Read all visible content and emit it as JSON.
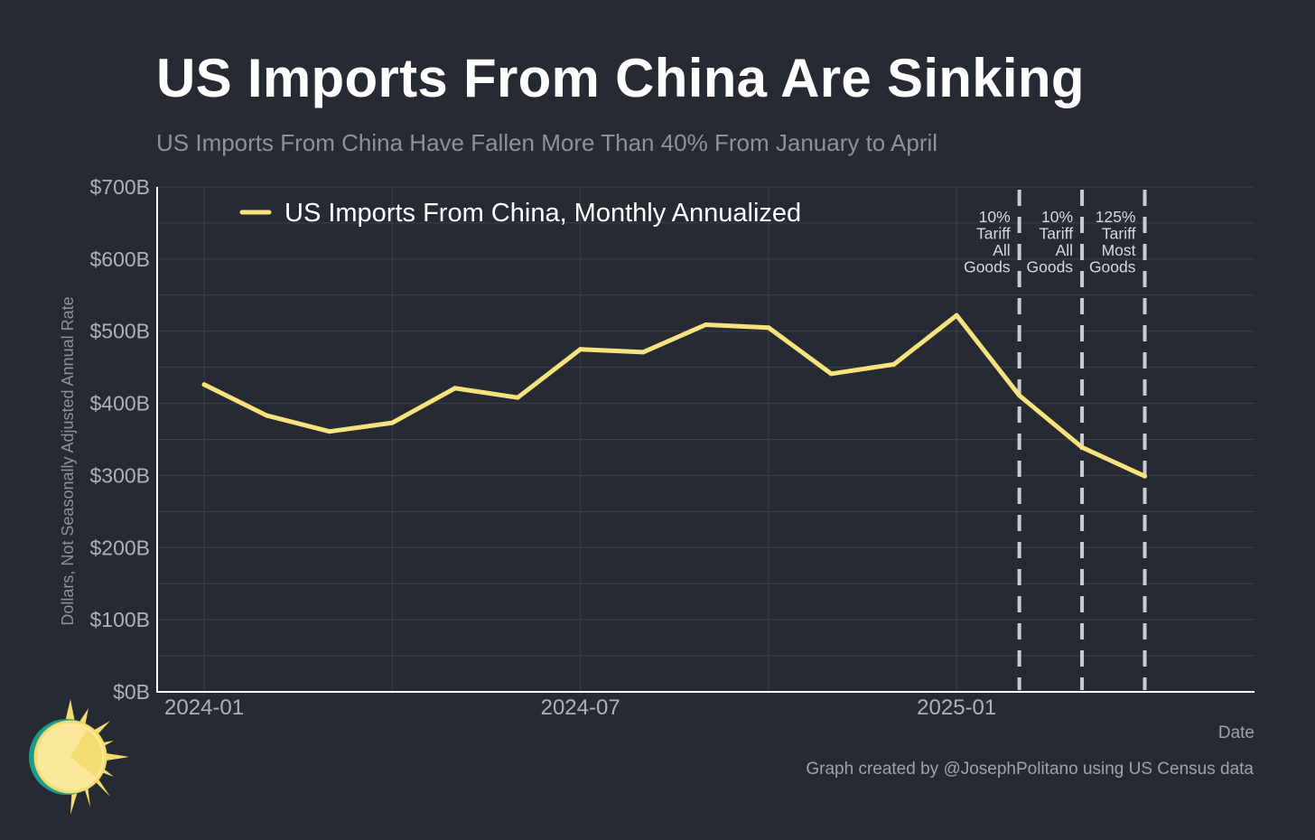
{
  "title": "US Imports From China Are Sinking",
  "subtitle": "US Imports From China Have Fallen More Than 40% From January to April",
  "caption": "Graph created by @JosephPolitano using US Census data",
  "colors": {
    "background": "#252a33",
    "series": "#f7e27e",
    "grid": "#3b404a",
    "axis": "#ffffff",
    "tick_text": "#aeb2b8",
    "vline": "#c9ccd1"
  },
  "chart_data": {
    "type": "line",
    "xlabel": "Date",
    "ylabel": "Dollars, Not Seasonally Adjusted Annual Rate",
    "ylim": [
      0,
      700
    ],
    "yticks": [
      0,
      100,
      200,
      300,
      400,
      500,
      600,
      700
    ],
    "ytick_labels": [
      "$0B",
      "$100B",
      "$200B",
      "$300B",
      "$400B",
      "$500B",
      "$600B",
      "$700B"
    ],
    "xlim": [
      -0.75,
      16.75
    ],
    "xticks": [
      0,
      6,
      12
    ],
    "xtick_labels": [
      "2024-01",
      "2024-07",
      "2025-01"
    ],
    "x_minor_gridlines": [
      3,
      9
    ],
    "legend_position": "top-left",
    "grid": true,
    "series": [
      {
        "name": "US Imports From China, Monthly Annualized",
        "x": [
          "2024-01",
          "2024-02",
          "2024-03",
          "2024-04",
          "2024-05",
          "2024-06",
          "2024-07",
          "2024-08",
          "2024-09",
          "2024-10",
          "2024-11",
          "2024-12",
          "2025-01",
          "2025-02",
          "2025-03",
          "2025-04"
        ],
        "values": [
          426,
          383,
          361,
          373,
          421,
          408,
          475,
          471,
          509,
          505,
          441,
          454,
          522,
          411,
          339,
          299
        ]
      }
    ],
    "annotations": [
      {
        "x": 13,
        "lines": [
          "10%",
          "Tariff",
          "All",
          "Goods"
        ]
      },
      {
        "x": 14,
        "lines": [
          "10%",
          "Tariff",
          "All",
          "Goods"
        ]
      },
      {
        "x": 15,
        "lines": [
          "125%",
          "Tariff",
          "Most",
          "Goods"
        ]
      }
    ]
  },
  "logo": {
    "icon": "sun-icon"
  }
}
